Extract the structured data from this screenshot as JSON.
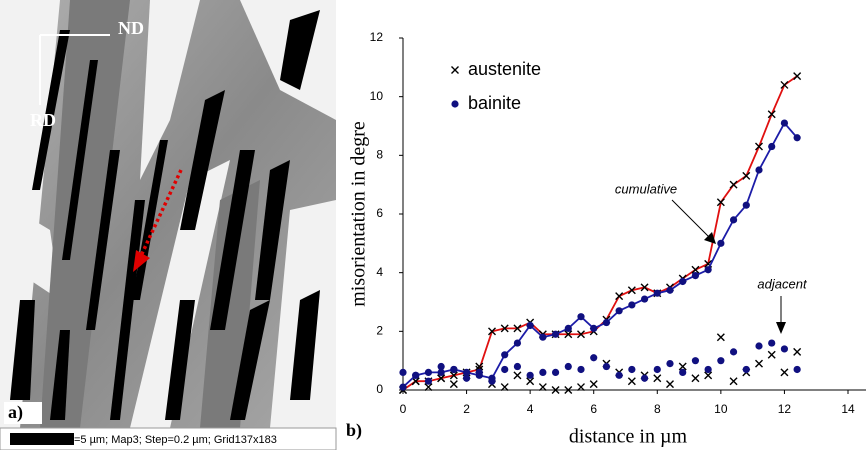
{
  "panel_a": {
    "label": "a)",
    "nd": "ND",
    "rd": "RD",
    "scale_bar": "=5 µm; Map3; Step=0.2 µm; Grid137x183"
  },
  "chart_data": {
    "type": "line",
    "panel_label": "b)",
    "xlabel": "distance in µm",
    "ylabel": "misorientation in degre",
    "annotations": [
      "cumulative",
      "adjacent"
    ],
    "xlim": [
      0,
      14
    ],
    "ylim": [
      0,
      12
    ],
    "xticks": [
      0,
      2,
      4,
      6,
      8,
      10,
      12,
      14
    ],
    "yticks": [
      0,
      2,
      4,
      6,
      8,
      10,
      12
    ],
    "x": [
      0,
      0.4,
      0.8,
      1.2,
      1.6,
      2.0,
      2.4,
      2.8,
      3.2,
      3.6,
      4.0,
      4.4,
      4.8,
      5.2,
      5.6,
      6.0,
      6.4,
      6.8,
      7.2,
      7.6,
      8.0,
      8.4,
      8.8,
      9.2,
      9.6,
      10.0,
      10.4,
      10.8,
      11.2,
      11.6,
      12.0,
      12.4
    ],
    "series": [
      {
        "name": "austenite",
        "color": "#e01010",
        "marker": "x",
        "marker_color": "#000000",
        "values": [
          0,
          0.3,
          0.3,
          0.4,
          0.5,
          0.6,
          0.7,
          2.0,
          2.1,
          2.1,
          2.3,
          1.9,
          1.9,
          1.9,
          1.9,
          2.0,
          2.4,
          3.2,
          3.4,
          3.5,
          3.3,
          3.5,
          3.8,
          4.1,
          4.3,
          6.4,
          7.0,
          7.3,
          8.3,
          9.4,
          10.4,
          10.7
        ],
        "adjacent": [
          0,
          0.3,
          0.1,
          0.4,
          0.2,
          0.5,
          0.8,
          0.2,
          0.1,
          0.5,
          0.3,
          0.1,
          0.0,
          0.0,
          0.1,
          0.2,
          0.9,
          0.6,
          0.3,
          0.5,
          0.4,
          0.2,
          0.8,
          0.4,
          0.5,
          1.8,
          0.3,
          0.6,
          0.9,
          1.2,
          0.6,
          1.3
        ]
      },
      {
        "name": "bainite",
        "color": "#1c1ca8",
        "marker": "circle",
        "marker_color": "#101080",
        "values": [
          0.1,
          0.5,
          0.6,
          0.6,
          0.7,
          0.6,
          0.5,
          0.4,
          1.2,
          1.6,
          2.2,
          1.8,
          1.9,
          2.1,
          2.5,
          2.1,
          2.3,
          2.7,
          2.9,
          3.1,
          3.3,
          3.4,
          3.7,
          3.9,
          4.1,
          5.0,
          5.8,
          6.3,
          7.5,
          8.3,
          9.1,
          8.6
        ],
        "adjacent": [
          0.6,
          0.5,
          0.3,
          0.8,
          0.7,
          0.4,
          0.6,
          0.3,
          0.7,
          0.8,
          0.5,
          0.6,
          0.6,
          0.8,
          0.7,
          1.1,
          0.8,
          0.5,
          0.7,
          0.4,
          0.7,
          0.9,
          0.6,
          1.0,
          0.7,
          1.0,
          1.3,
          0.7,
          1.5,
          1.6,
          1.4,
          0.7
        ]
      }
    ]
  }
}
